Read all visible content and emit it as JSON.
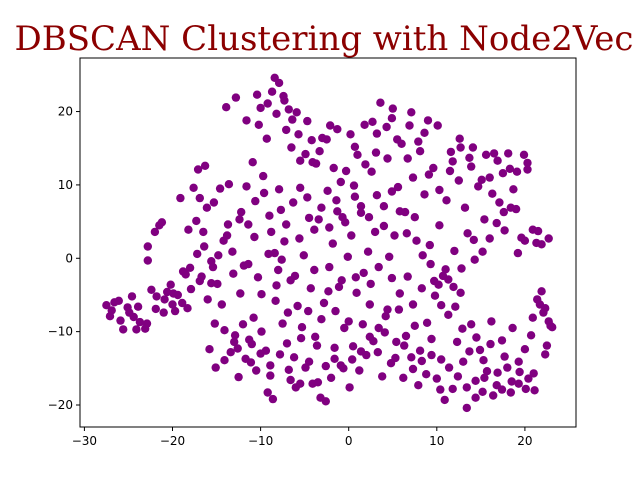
{
  "chart_data": {
    "type": "scatter",
    "title": "DBSCAN Clustering with Node2Vec",
    "xlabel": "",
    "ylabel": "",
    "xlim": [
      -30.5,
      25.8
    ],
    "ylim": [
      -23,
      27.3
    ],
    "xticks": [
      -30,
      -20,
      -10,
      0,
      10,
      20
    ],
    "yticks": [
      -20,
      -10,
      0,
      10,
      20
    ],
    "grid": false,
    "legend": "none",
    "point_color": "#800080",
    "points": [
      [
        -27.5,
        -6.4
      ],
      [
        -27.1,
        -7.9
      ],
      [
        -26.6,
        -6.0
      ],
      [
        -26.1,
        -5.8
      ],
      [
        -25.6,
        -9.7
      ],
      [
        -25.1,
        -6.7
      ],
      [
        -24.6,
        -5.2
      ],
      [
        -24.4,
        -8.0
      ],
      [
        -24.1,
        -9.7
      ],
      [
        -23.7,
        -8.7
      ],
      [
        -23.1,
        -9.6
      ],
      [
        -22.8,
        -0.3
      ],
      [
        -22.8,
        1.6
      ],
      [
        -22.4,
        -4.3
      ],
      [
        -22.0,
        3.6
      ],
      [
        -21.8,
        -5.2
      ],
      [
        -21.5,
        4.5
      ],
      [
        -21.2,
        4.9
      ],
      [
        -21.0,
        -7.4
      ],
      [
        -20.6,
        -4.6
      ],
      [
        -20.2,
        -3.6
      ],
      [
        -20.0,
        -6.3
      ],
      [
        -19.7,
        -7.2
      ],
      [
        -19.4,
        -5.0
      ],
      [
        -18.8,
        -1.8
      ],
      [
        -18.5,
        -2.2
      ],
      [
        -18.3,
        -6.8
      ],
      [
        -18.0,
        -1.3
      ],
      [
        -17.6,
        9.6
      ],
      [
        -17.1,
        12.1
      ],
      [
        -16.9,
        8.2
      ],
      [
        -16.7,
        -2.5
      ],
      [
        -16.5,
        3.6
      ],
      [
        -16.3,
        12.6
      ],
      [
        -16.0,
        -5.6
      ],
      [
        -15.8,
        -12.4
      ],
      [
        -15.6,
        -3.4
      ],
      [
        -15.4,
        -1.2
      ],
      [
        -15.1,
        -14.9
      ],
      [
        -14.9,
        -3.5
      ],
      [
        -14.6,
        9.5
      ],
      [
        -14.4,
        -6.3
      ],
      [
        -14.1,
        -13.9
      ],
      [
        -13.8,
        3.1
      ],
      [
        -13.6,
        10.1
      ],
      [
        -13.4,
        -12.8
      ],
      [
        -13.2,
        0.9
      ],
      [
        -12.9,
        -10.5
      ],
      [
        -12.6,
        -12.3
      ],
      [
        -12.5,
        -16.2
      ],
      [
        -12.2,
        6.3
      ],
      [
        -11.9,
        -1.0
      ],
      [
        -11.7,
        -13.7
      ],
      [
        -11.6,
        9.8
      ],
      [
        -11.3,
        -11.1
      ],
      [
        -11.1,
        -14.2
      ],
      [
        -10.9,
        13.1
      ],
      [
        -10.8,
        -8.1
      ],
      [
        -10.5,
        -15.3
      ],
      [
        -10.3,
        -2.6
      ],
      [
        -10.0,
        20.5
      ],
      [
        -9.9,
        -10.0
      ],
      [
        -9.7,
        11.2
      ],
      [
        -9.4,
        -12.6
      ],
      [
        -9.2,
        -18.3
      ],
      [
        -9.0,
        5.8
      ],
      [
        -8.9,
        -16.0
      ],
      [
        -8.7,
        22.7
      ],
      [
        -8.6,
        -19.2
      ],
      [
        -8.4,
        0.7
      ],
      [
        -8.2,
        -3.7
      ],
      [
        -8.0,
        -1.6
      ],
      [
        -7.9,
        23.9
      ],
      [
        -7.7,
        6.6
      ],
      [
        -7.5,
        -8.9
      ],
      [
        -7.3,
        2.3
      ],
      [
        -7.1,
        17.5
      ],
      [
        -7.0,
        -11.6
      ],
      [
        -6.8,
        -15.2
      ],
      [
        -6.6,
        -3.0
      ],
      [
        -6.4,
        18.9
      ],
      [
        -6.2,
        -13.5
      ],
      [
        -6.0,
        -17.6
      ],
      [
        -5.8,
        -6.5
      ],
      [
        -5.6,
        2.7
      ],
      [
        -5.5,
        13.3
      ],
      [
        -5.3,
        -9.4
      ],
      [
        -5.1,
        0.4
      ],
      [
        -4.9,
        -14.9
      ],
      [
        -4.7,
        18.7
      ],
      [
        -4.5,
        5.5
      ],
      [
        -4.3,
        -4.1
      ],
      [
        -4.1,
        -17.1
      ],
      [
        -3.9,
        -1.6
      ],
      [
        -3.7,
        12.9
      ],
      [
        -3.6,
        -11.9
      ],
      [
        -3.4,
        5.3
      ],
      [
        -3.2,
        -19.0
      ],
      [
        -3.0,
        16.4
      ],
      [
        -2.8,
        -6.1
      ],
      [
        -2.6,
        -14.7
      ],
      [
        -2.4,
        9.2
      ],
      [
        -2.2,
        -1.2
      ],
      [
        -2.0,
        -16.3
      ],
      [
        -1.8,
        2.0
      ],
      [
        -1.6,
        -12.2
      ],
      [
        -1.4,
        7.9
      ],
      [
        -1.3,
        17.6
      ],
      [
        -1.1,
        -3.9
      ],
      [
        -0.9,
        -14.6
      ],
      [
        -0.7,
        5.6
      ],
      [
        -0.5,
        -9.5
      ],
      [
        -0.3,
        11.9
      ],
      [
        -0.1,
        0.2
      ],
      [
        0.1,
        -17.6
      ],
      [
        0.3,
        3.1
      ],
      [
        0.5,
        -12.0
      ],
      [
        0.7,
        8.4
      ],
      [
        0.8,
        -2.6
      ],
      [
        1.0,
        14.1
      ],
      [
        1.2,
        -15.3
      ],
      [
        1.4,
        6.2
      ],
      [
        1.6,
        -9.0
      ],
      [
        1.8,
        18.2
      ],
      [
        2.0,
        -13.2
      ],
      [
        2.2,
        0.9
      ],
      [
        2.4,
        -6.3
      ],
      [
        2.6,
        11.8
      ],
      [
        2.8,
        -11.3
      ],
      [
        3.0,
        3.6
      ],
      [
        3.2,
        17.0
      ],
      [
        3.4,
        -1.2
      ],
      [
        3.6,
        21.2
      ],
      [
        3.8,
        -16.1
      ],
      [
        4.0,
        7.1
      ],
      [
        4.2,
        -7.9
      ],
      [
        4.4,
        13.6
      ],
      [
        4.6,
        0.2
      ],
      [
        4.8,
        -14.3
      ],
      [
        5.0,
        20.4
      ],
      [
        5.2,
        3.1
      ],
      [
        5.4,
        -11.4
      ],
      [
        5.6,
        9.7
      ],
      [
        5.8,
        -4.8
      ],
      [
        6.0,
        15.6
      ],
      [
        6.2,
        -16.3
      ],
      [
        6.4,
        6.3
      ],
      [
        6.7,
        -2.5
      ],
      [
        6.9,
        18.1
      ],
      [
        7.1,
        -13.5
      ],
      [
        7.3,
        11.0
      ],
      [
        7.5,
        -9.2
      ],
      [
        7.7,
        2.4
      ],
      [
        7.9,
        -17.3
      ],
      [
        8.1,
        14.6
      ],
      [
        8.3,
        -4.1
      ],
      [
        8.6,
        8.7
      ],
      [
        8.8,
        -15.8
      ],
      [
        9.0,
        18.8
      ],
      [
        9.2,
        1.8
      ],
      [
        9.4,
        -11.0
      ],
      [
        9.6,
        12.3
      ],
      [
        9.8,
        -5.1
      ],
      [
        10.0,
        -16.4
      ],
      [
        10.3,
        4.5
      ],
      [
        10.5,
        -13.8
      ],
      [
        10.7,
        -2.4
      ],
      [
        10.9,
        -19.3
      ],
      [
        11.1,
        7.9
      ],
      [
        11.3,
        -7.7
      ],
      [
        11.6,
        14.5
      ],
      [
        11.8,
        -17.8
      ],
      [
        12.0,
        1.0
      ],
      [
        12.3,
        -11.4
      ],
      [
        12.5,
        10.6
      ],
      [
        12.7,
        -4.7
      ],
      [
        13.0,
        -14.1
      ],
      [
        13.2,
        6.9
      ],
      [
        13.4,
        -20.4
      ],
      [
        13.7,
        13.7
      ],
      [
        13.9,
        -9.0
      ],
      [
        14.2,
        2.5
      ],
      [
        14.4,
        -16.7
      ],
      [
        14.7,
        9.8
      ],
      [
        14.9,
        -12.5
      ],
      [
        15.2,
        -18.2
      ],
      [
        15.4,
        5.3
      ],
      [
        15.7,
        -15.4
      ],
      [
        16.0,
        11.0
      ],
      [
        16.2,
        -8.6
      ],
      [
        16.5,
        14.3
      ],
      [
        16.8,
        -17.3
      ],
      [
        17.1,
        7.6
      ],
      [
        17.4,
        -11.2
      ],
      [
        17.7,
        3.8
      ],
      [
        18.0,
        -14.9
      ],
      [
        18.3,
        12.2
      ],
      [
        18.6,
        -9.5
      ],
      [
        19.0,
        6.7
      ],
      [
        19.3,
        -17.1
      ],
      [
        19.6,
        2.8
      ],
      [
        20.0,
        -12.4
      ],
      [
        20.3,
        13.0
      ],
      [
        20.7,
        -10.5
      ],
      [
        21.1,
        -18.0
      ],
      [
        21.5,
        3.7
      ],
      [
        21.9,
        -4.5
      ],
      [
        22.3,
        -13.1
      ],
      [
        22.7,
        -8.6
      ],
      [
        23.1,
        -9.4
      ],
      [
        -26.9,
        -7.1
      ],
      [
        -25.9,
        -8.5
      ],
      [
        -24.9,
        -7.4
      ],
      [
        -23.9,
        -6.6
      ],
      [
        -22.9,
        -8.9
      ],
      [
        -21.9,
        -6.9
      ],
      [
        -20.9,
        -5.6
      ],
      [
        -19.9,
        -4.8
      ],
      [
        -18.9,
        -6.1
      ],
      [
        -17.9,
        -4.2
      ],
      [
        -16.9,
        -3.1
      ],
      [
        -17.3,
        5.1
      ],
      [
        -16.1,
        6.9
      ],
      [
        -15.3,
        7.6
      ],
      [
        -14.2,
        2.4
      ],
      [
        -13.1,
        -2.1
      ],
      [
        -12.3,
        -4.8
      ],
      [
        -11.4,
        -0.8
      ],
      [
        -10.7,
        2.9
      ],
      [
        -9.9,
        -4.9
      ],
      [
        -9.1,
        0.6
      ],
      [
        -8.3,
        -5.8
      ],
      [
        -7.6,
        -0.2
      ],
      [
        -6.9,
        -7.4
      ],
      [
        -6.1,
        -2.4
      ],
      [
        -5.4,
        -10.9
      ],
      [
        -4.6,
        -7.2
      ],
      [
        -3.8,
        -10.7
      ],
      [
        -3.1,
        -8.3
      ],
      [
        -2.3,
        -4.5
      ],
      [
        -1.5,
        -7.2
      ],
      [
        -0.8,
        -3.0
      ],
      [
        0.0,
        -8.6
      ],
      [
        0.9,
        -4.7
      ],
      [
        1.7,
        -2.0
      ],
      [
        2.5,
        -3.5
      ],
      [
        3.3,
        -12.8
      ],
      [
        4.1,
        -10.1
      ],
      [
        4.9,
        -2.7
      ],
      [
        5.7,
        -7.0
      ],
      [
        6.5,
        -10.6
      ],
      [
        7.3,
        -6.3
      ],
      [
        8.1,
        -12.6
      ],
      [
        8.9,
        -8.8
      ],
      [
        9.7,
        -3.1
      ],
      [
        10.5,
        -6.4
      ],
      [
        11.3,
        -2.9
      ],
      [
        12.1,
        -6.6
      ],
      [
        12.9,
        -9.6
      ],
      [
        13.7,
        -12.7
      ],
      [
        14.5,
        -10.8
      ],
      [
        15.3,
        -13.9
      ],
      [
        16.1,
        -11.7
      ],
      [
        16.9,
        -15.6
      ],
      [
        17.7,
        -13.4
      ],
      [
        18.5,
        -16.8
      ],
      [
        19.3,
        -14.1
      ],
      [
        20.1,
        -17.8
      ],
      [
        20.9,
        -8.1
      ],
      [
        21.7,
        -6.3
      ],
      [
        22.5,
        -11.9
      ],
      [
        -13.9,
        20.6
      ],
      [
        -12.8,
        21.9
      ],
      [
        -11.6,
        18.8
      ],
      [
        -10.4,
        22.3
      ],
      [
        -9.3,
        16.3
      ],
      [
        -8.2,
        19.7
      ],
      [
        -7.3,
        21.5
      ],
      [
        -6.5,
        15.1
      ],
      [
        -5.7,
        16.9
      ],
      [
        -4.9,
        14.2
      ],
      [
        -4.1,
        13.1
      ],
      [
        -3.3,
        14.6
      ],
      [
        -2.5,
        16.2
      ],
      [
        -1.7,
        12.3
      ],
      [
        -0.9,
        10.4
      ],
      [
        0.7,
        15.2
      ],
      [
        1.9,
        12.8
      ],
      [
        3.1,
        14.4
      ],
      [
        4.3,
        17.9
      ],
      [
        5.5,
        16.2
      ],
      [
        6.7,
        13.6
      ],
      [
        7.9,
        15.9
      ],
      [
        9.1,
        11.4
      ],
      [
        10.3,
        9.3
      ],
      [
        11.5,
        11.9
      ],
      [
        12.7,
        15.1
      ],
      [
        13.9,
        12.5
      ],
      [
        15.1,
        10.7
      ],
      [
        16.3,
        8.8
      ],
      [
        17.5,
        11.6
      ],
      [
        18.7,
        9.4
      ],
      [
        19.9,
        14.1
      ],
      [
        20.9,
        3.9
      ],
      [
        21.9,
        1.9
      ],
      [
        22.7,
        2.7
      ],
      [
        -19.1,
        8.2
      ],
      [
        -18.2,
        3.9
      ],
      [
        -17.2,
        0.6
      ],
      [
        -16.4,
        1.6
      ],
      [
        -15.6,
        -0.4
      ],
      [
        -14.8,
        0.4
      ],
      [
        -13.7,
        4.6
      ],
      [
        -12.4,
        5.3
      ],
      [
        -11.4,
        4.6
      ],
      [
        -10.6,
        7.8
      ],
      [
        -9.6,
        8.9
      ],
      [
        -8.8,
        3.6
      ],
      [
        -7.9,
        9.4
      ],
      [
        -7.1,
        4.6
      ],
      [
        -6.3,
        7.6
      ],
      [
        -5.5,
        9.6
      ],
      [
        -4.7,
        8.3
      ],
      [
        -3.9,
        3.9
      ],
      [
        -3.1,
        6.9
      ],
      [
        -2.2,
        4.2
      ],
      [
        -1.3,
        6.4
      ],
      [
        -0.4,
        4.9
      ],
      [
        0.6,
        9.9
      ],
      [
        1.4,
        7.1
      ],
      [
        2.3,
        5.6
      ],
      [
        3.2,
        8.6
      ],
      [
        4.0,
        4.4
      ],
      [
        4.9,
        9.1
      ],
      [
        5.8,
        6.4
      ],
      [
        6.6,
        3.4
      ],
      [
        7.5,
        5.6
      ],
      [
        8.4,
        0.4
      ],
      [
        9.3,
        -0.8
      ],
      [
        10.2,
        -3.6
      ],
      [
        11.0,
        -1.5
      ],
      [
        11.9,
        -3.9
      ],
      [
        12.8,
        -1.4
      ],
      [
        13.5,
        3.4
      ],
      [
        14.3,
        -0.2
      ],
      [
        15.2,
        0.9
      ],
      [
        16.0,
        2.7
      ],
      [
        16.8,
        4.8
      ],
      [
        17.6,
        6.3
      ],
      [
        18.4,
        6.9
      ],
      [
        19.2,
        0.7
      ],
      [
        20.0,
        2.4
      ],
      [
        21.4,
        -5.6
      ],
      [
        22.1,
        -7.4
      ],
      [
        -15.2,
        -8.9
      ],
      [
        -14.1,
        -9.8
      ],
      [
        -13.0,
        -11.4
      ],
      [
        -12.0,
        -9.0
      ],
      [
        -11.0,
        -11.7
      ],
      [
        -10.0,
        -13.0
      ],
      [
        -8.9,
        -14.6
      ],
      [
        -7.8,
        -13.1
      ],
      [
        -6.6,
        -16.6
      ],
      [
        -5.5,
        -17.1
      ],
      [
        -4.5,
        -14.1
      ],
      [
        -3.5,
        -16.9
      ],
      [
        -2.6,
        -19.5
      ],
      [
        -1.6,
        -13.7
      ],
      [
        -0.6,
        -15.0
      ],
      [
        0.4,
        -13.8
      ],
      [
        1.4,
        -12.7
      ],
      [
        2.4,
        -10.7
      ],
      [
        3.4,
        -9.5
      ],
      [
        4.4,
        -7.0
      ],
      [
        5.3,
        -13.6
      ],
      [
        6.3,
        -11.9
      ],
      [
        7.3,
        -15.1
      ],
      [
        8.3,
        -14.0
      ],
      [
        9.4,
        -13.2
      ],
      [
        10.4,
        -17.9
      ],
      [
        11.4,
        -14.9
      ],
      [
        12.4,
        -16.1
      ],
      [
        13.4,
        -17.6
      ],
      [
        14.4,
        -19.0
      ],
      [
        15.4,
        -16.3
      ],
      [
        16.4,
        -18.7
      ],
      [
        17.4,
        -17.9
      ],
      [
        18.4,
        -18.3
      ],
      [
        19.4,
        -15.5
      ],
      [
        20.4,
        -16.4
      ],
      [
        21.0,
        -15.7
      ],
      [
        -10.2,
        18.2
      ],
      [
        -9.2,
        21.1
      ],
      [
        -8.4,
        24.6
      ],
      [
        -7.4,
        22.1
      ],
      [
        -6.8,
        20.3
      ],
      [
        -5.9,
        19.9
      ],
      [
        -4.2,
        16.1
      ],
      [
        -2.1,
        18.1
      ],
      [
        0.2,
        16.9
      ],
      [
        2.7,
        18.6
      ],
      [
        4.9,
        19.1
      ],
      [
        7.1,
        19.9
      ],
      [
        8.6,
        17.1
      ],
      [
        10.1,
        18.1
      ],
      [
        11.8,
        13.2
      ],
      [
        12.6,
        16.3
      ],
      [
        14.1,
        15.1
      ],
      [
        15.6,
        14.1
      ],
      [
        16.9,
        13.3
      ],
      [
        18.1,
        14.3
      ],
      [
        19.1,
        11.8
      ],
      [
        20.3,
        12.1
      ],
      [
        21.3,
        2.1
      ],
      [
        22.3,
        -6.8
      ],
      [
        22.9,
        -9.2
      ]
    ]
  }
}
